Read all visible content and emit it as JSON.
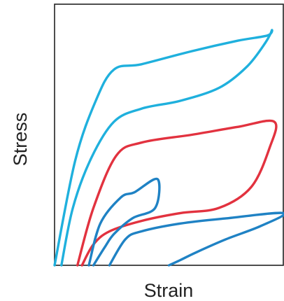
{
  "chart_data": {
    "type": "line",
    "xlabel": "Strain",
    "ylabel": "Stress",
    "ticks": "none",
    "grid": false,
    "legend": "none",
    "colors": {
      "cyan": "#1fb0dd",
      "red": "#e2323f",
      "blue": "#1f82c4",
      "frame": "#222222"
    },
    "series": [
      {
        "color": "cyan",
        "points": [
          [
            0.0,
            0.0
          ],
          [
            0.09,
            0.4
          ],
          [
            0.18,
            0.63
          ],
          [
            0.26,
            0.75
          ],
          [
            0.38,
            0.77
          ],
          [
            0.6,
            0.82
          ],
          [
            0.8,
            0.86
          ],
          [
            0.93,
            0.88
          ],
          [
            0.95,
            0.9
          ],
          [
            0.92,
            0.85
          ],
          [
            0.84,
            0.76
          ],
          [
            0.72,
            0.68
          ],
          [
            0.55,
            0.63
          ],
          [
            0.38,
            0.6
          ],
          [
            0.26,
            0.55
          ],
          [
            0.16,
            0.41
          ],
          [
            0.08,
            0.22
          ],
          [
            0.03,
            0.0
          ]
        ]
      },
      {
        "color": "red",
        "points": [
          [
            0.1,
            0.0
          ],
          [
            0.17,
            0.22
          ],
          [
            0.27,
            0.42
          ],
          [
            0.38,
            0.47
          ],
          [
            0.6,
            0.5
          ],
          [
            0.8,
            0.53
          ],
          [
            0.96,
            0.55
          ],
          [
            0.94,
            0.45
          ],
          [
            0.86,
            0.3
          ],
          [
            0.72,
            0.22
          ],
          [
            0.55,
            0.2
          ],
          [
            0.38,
            0.17
          ],
          [
            0.24,
            0.13
          ],
          [
            0.17,
            0.08
          ],
          [
            0.12,
            0.0
          ]
        ]
      },
      {
        "color": "blue",
        "points": [
          [
            0.15,
            0.0
          ],
          [
            0.2,
            0.16
          ],
          [
            0.29,
            0.26
          ],
          [
            0.35,
            0.28
          ],
          [
            0.45,
            0.33
          ],
          [
            0.44,
            0.22
          ],
          [
            0.34,
            0.18
          ],
          [
            0.26,
            0.12
          ],
          [
            0.22,
            0.07
          ],
          [
            0.17,
            0.0
          ]
        ]
      },
      {
        "color": "blue",
        "points": [
          [
            0.24,
            0.0
          ],
          [
            0.31,
            0.1
          ],
          [
            0.38,
            0.13
          ],
          [
            0.55,
            0.16
          ],
          [
            0.75,
            0.18
          ],
          [
            1.0,
            0.2
          ],
          [
            0.9,
            0.15
          ],
          [
            0.75,
            0.1
          ],
          [
            0.62,
            0.05
          ],
          [
            0.55,
            0.02
          ],
          [
            0.5,
            0.0
          ]
        ]
      }
    ]
  }
}
